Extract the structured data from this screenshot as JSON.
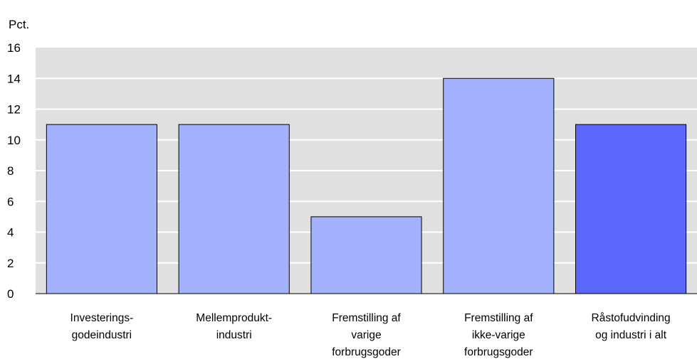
{
  "chart_data": {
    "type": "bar",
    "ylabel": "Pct.",
    "ylim": [
      0,
      16
    ],
    "yticks": [
      0,
      2,
      4,
      6,
      8,
      10,
      12,
      14,
      16
    ],
    "grid": true,
    "categories": [
      [
        "Investerings-",
        "godeindustri"
      ],
      [
        "Mellemprodukt-",
        "industri"
      ],
      [
        "Fremstilling af",
        "varige",
        "forbrugsgoder"
      ],
      [
        "Fremstilling af",
        "ikke-varige",
        "forbrugsgoder"
      ],
      [
        "Råstofudvinding",
        "og industri i alt"
      ]
    ],
    "values": [
      11,
      11,
      5,
      14,
      11
    ],
    "colors": {
      "plot_background": "#e0e0e0",
      "gridline": "#ffffff",
      "bar_default": "#a3b2fd",
      "bar_total": "#5c67fc",
      "bar_edge": "#000000"
    },
    "highlight_index": 4
  }
}
